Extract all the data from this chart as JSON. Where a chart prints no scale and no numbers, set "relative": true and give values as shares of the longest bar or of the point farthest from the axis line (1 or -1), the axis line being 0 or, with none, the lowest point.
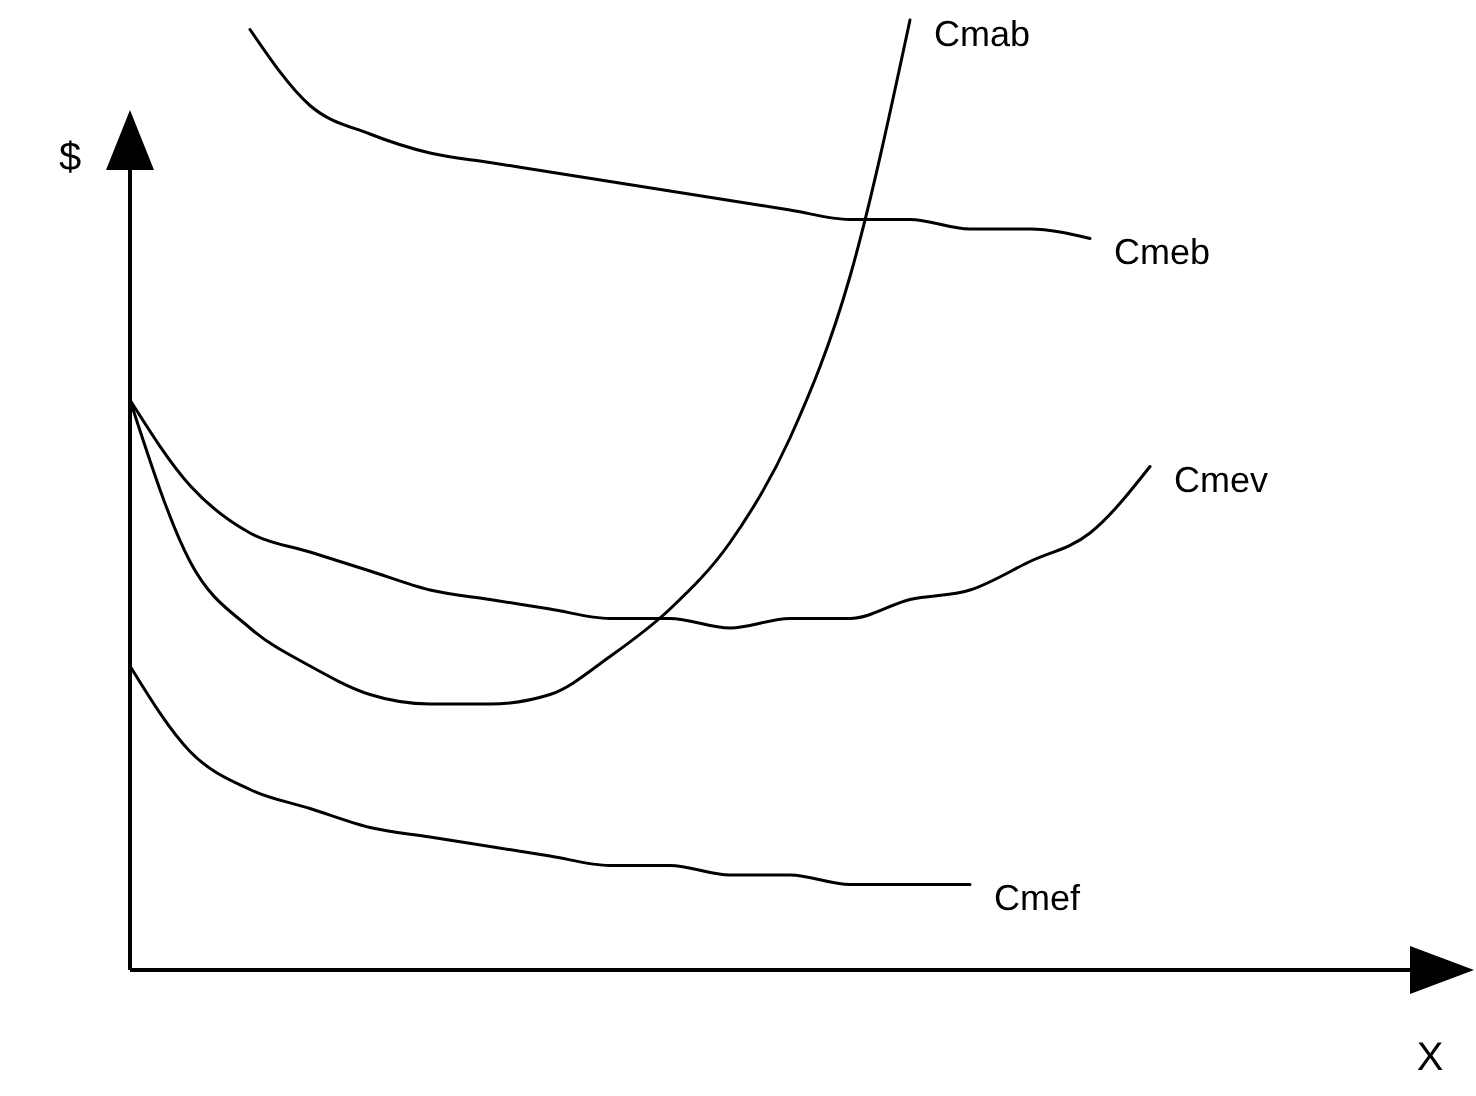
{
  "chart_data": {
    "type": "line",
    "relative": true,
    "xlabel": "X",
    "ylabel": "$",
    "legend": false,
    "marker": "none",
    "line_style": "solid",
    "categories": [
      null,
      null,
      null,
      null,
      null,
      null,
      null,
      null,
      null,
      null,
      null,
      null,
      null,
      null,
      null,
      null,
      null,
      null,
      null,
      null,
      null,
      null
    ],
    "series": [
      {
        "name": "Cmab",
        "color": "#000000",
        "values": [
          0.6,
          0.43,
          0.36,
          0.32,
          0.29,
          0.28,
          0.28,
          0.29,
          0.33,
          0.38,
          0.45,
          0.56,
          0.73,
          1,
          null,
          null,
          null,
          null,
          null,
          null,
          null,
          null
        ]
      },
      {
        "name": "Cmeb",
        "color": "#000000",
        "values": [
          null,
          null,
          0.99,
          0.91,
          0.88,
          0.86,
          0.85,
          0.84,
          0.83,
          0.82,
          0.81,
          0.8,
          0.79,
          0.79,
          0.78,
          0.78,
          0.77,
          null,
          null,
          null,
          null,
          null
        ]
      },
      {
        "name": "Cmev",
        "color": "#000000",
        "values": [
          0.6,
          0.51,
          0.46,
          0.44,
          0.42,
          0.4,
          0.39,
          0.38,
          0.37,
          0.37,
          0.36,
          0.37,
          0.37,
          0.39,
          0.4,
          0.43,
          0.46,
          0.53,
          null,
          null,
          null,
          null
        ]
      },
      {
        "name": "Cmef",
        "color": "#000000",
        "values": [
          0.32,
          0.23,
          0.19,
          0.17,
          0.15,
          0.14,
          0.13,
          0.12,
          0.11,
          0.11,
          0.1,
          0.1,
          0.09,
          0.09,
          0.09,
          null,
          null,
          null,
          null,
          null,
          null,
          null
        ]
      }
    ]
  }
}
